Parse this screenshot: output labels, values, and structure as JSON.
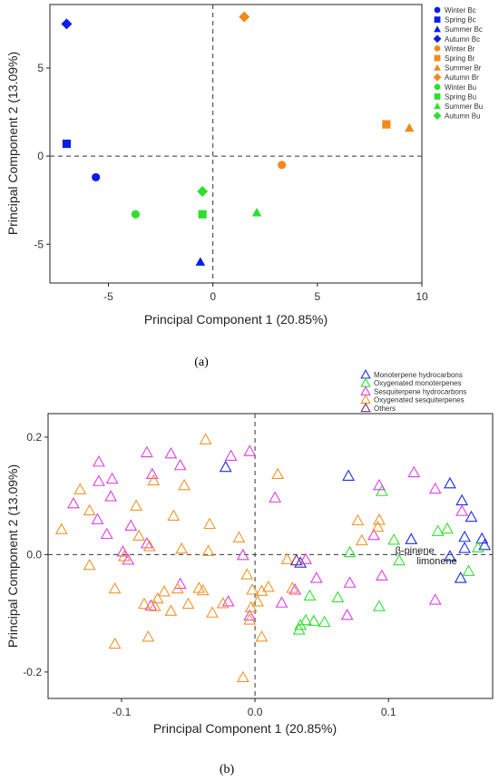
{
  "colors": {
    "Bc": "#0a1ee8",
    "Br": "#f2891e",
    "Bu": "#2ee02e",
    "monoterpene": "#1a2ee8",
    "oxy_mono": "#33e033",
    "sesqui": "#e23de6",
    "oxy_sesqui": "#f0962a",
    "others": "#7a2a6e"
  },
  "chart_data": [
    {
      "type": "scatter",
      "panel_label": "(a)",
      "xlabel": "Principal Component 1 (20.85%)",
      "ylabel": "Principal Component 2 (13.09%)",
      "xlim": [
        -7.8,
        10.0
      ],
      "ylim": [
        -7.2,
        8.6
      ],
      "xticks": [
        -5,
        0,
        5,
        10
      ],
      "yticks": [
        -5,
        0,
        5
      ],
      "reference_lines": {
        "x": 0,
        "y": 0
      },
      "legend_position": "right, outside",
      "series": [
        {
          "name": "Winter Bc",
          "marker": "circle",
          "color_key": "Bc",
          "points": [
            [
              -5.6,
              -1.2
            ]
          ]
        },
        {
          "name": "Spring Bc",
          "marker": "square",
          "color_key": "Bc",
          "points": [
            [
              -7.0,
              0.7
            ]
          ]
        },
        {
          "name": "Summer Bc",
          "marker": "triangle",
          "color_key": "Bc",
          "points": [
            [
              -0.6,
              -6.0
            ]
          ]
        },
        {
          "name": "Autumn Bc",
          "marker": "diamond",
          "color_key": "Bc",
          "points": [
            [
              -7.0,
              7.5
            ]
          ]
        },
        {
          "name": "Winter Br",
          "marker": "circle",
          "color_key": "Br",
          "points": [
            [
              3.3,
              -0.5
            ]
          ]
        },
        {
          "name": "Spring Br",
          "marker": "square",
          "color_key": "Br",
          "points": [
            [
              8.3,
              1.8
            ]
          ]
        },
        {
          "name": "Summer Br",
          "marker": "triangle",
          "color_key": "Br",
          "points": [
            [
              9.4,
              1.6
            ]
          ]
        },
        {
          "name": "Autumn Br",
          "marker": "diamond",
          "color_key": "Br",
          "points": [
            [
              1.5,
              7.9
            ]
          ]
        },
        {
          "name": "Winter Bu",
          "marker": "circle",
          "color_key": "Bu",
          "points": [
            [
              -3.7,
              -3.3
            ]
          ]
        },
        {
          "name": "Spring Bu",
          "marker": "square",
          "color_key": "Bu",
          "points": [
            [
              -0.5,
              -3.3
            ]
          ]
        },
        {
          "name": "Summer Bu",
          "marker": "triangle",
          "color_key": "Bu",
          "points": [
            [
              2.1,
              -3.2
            ]
          ]
        },
        {
          "name": "Autumn Bu",
          "marker": "diamond",
          "color_key": "Bu",
          "points": [
            [
              -0.5,
              -2.0
            ]
          ]
        }
      ]
    },
    {
      "type": "scatter",
      "panel_label": "(b)",
      "xlabel": "Principal Component 1 (20.85%)",
      "ylabel": "Principal Component 2 (13.09%)",
      "xlim": [
        -0.155,
        0.178
      ],
      "ylim": [
        -0.245,
        0.24
      ],
      "xticks": [
        -0.1,
        0.0,
        0.1
      ],
      "xtick_labels": [
        "-0.1",
        "0.0",
        "0.1"
      ],
      "yticks": [
        -0.2,
        0.0,
        0.2
      ],
      "ytick_labels": [
        "-0.2",
        "0.0",
        "0.2"
      ],
      "reference_lines": {
        "x": 0,
        "y": 0
      },
      "legend_position": "top-right, outside",
      "marker": "open triangle",
      "annotations": [
        {
          "text": "β-pinene",
          "x": 0.105,
          "y": 0.0
        },
        {
          "text": "limonene",
          "x": 0.121,
          "y": -0.018
        }
      ],
      "series": [
        {
          "name": "Monoterpene hydrocarbons",
          "color_key": "monoterpene",
          "points": [
            [
              -0.022,
              0.149
            ],
            [
              0.034,
              -0.014
            ],
            [
              0.07,
              0.134
            ],
            [
              0.117,
              0.026
            ],
            [
              0.146,
              0.121
            ],
            [
              0.155,
              0.092
            ],
            [
              0.162,
              0.064
            ],
            [
              0.157,
              0.03
            ],
            [
              0.17,
              0.027
            ],
            [
              0.172,
              0.016
            ],
            [
              0.157,
              0.011
            ],
            [
              0.146,
              -0.003
            ],
            [
              0.154,
              -0.04
            ]
          ]
        },
        {
          "name": "Oxygenated monoterpenes",
          "color_key": "oxy_mono",
          "points": [
            [
              0.095,
              0.108
            ],
            [
              0.137,
              0.04
            ],
            [
              0.144,
              0.044
            ],
            [
              0.167,
              0.012
            ],
            [
              0.104,
              0.025
            ],
            [
              0.108,
              -0.01
            ],
            [
              0.071,
              0.004
            ],
            [
              0.16,
              -0.028
            ],
            [
              0.062,
              -0.073
            ],
            [
              0.041,
              -0.07
            ],
            [
              0.034,
              -0.12
            ],
            [
              0.044,
              -0.113
            ],
            [
              0.038,
              -0.112
            ],
            [
              0.052,
              -0.115
            ],
            [
              0.093,
              -0.088
            ],
            [
              0.033,
              -0.128
            ]
          ]
        },
        {
          "name": "Sesquiterpene hydrocarbons",
          "color_key": "sesqui",
          "points": [
            [
              -0.081,
              0.174
            ],
            [
              -0.063,
              0.172
            ],
            [
              -0.018,
              0.168
            ],
            [
              -0.004,
              0.176
            ],
            [
              -0.117,
              0.158
            ],
            [
              -0.107,
              0.129
            ],
            [
              -0.117,
              0.125
            ],
            [
              -0.056,
              0.152
            ],
            [
              -0.077,
              0.137
            ],
            [
              0.119,
              0.14
            ],
            [
              0.093,
              0.118
            ],
            [
              0.135,
              0.112
            ],
            [
              0.155,
              0.074
            ],
            [
              0.015,
              0.097
            ],
            [
              -0.136,
              0.087
            ],
            [
              -0.108,
              0.099
            ],
            [
              -0.118,
              0.06
            ],
            [
              -0.093,
              0.049
            ],
            [
              -0.111,
              0.035
            ],
            [
              -0.081,
              0.019
            ],
            [
              -0.099,
              0.005
            ],
            [
              -0.095,
              -0.009
            ],
            [
              -0.009,
              -0.001
            ],
            [
              0.038,
              -0.008
            ],
            [
              0.089,
              0.033
            ],
            [
              0.046,
              -0.04
            ],
            [
              0.095,
              -0.036
            ],
            [
              -0.056,
              -0.05
            ],
            [
              -0.078,
              -0.087
            ],
            [
              -0.02,
              -0.08
            ],
            [
              0.03,
              -0.06
            ],
            [
              0.02,
              -0.082
            ],
            [
              0.071,
              -0.048
            ],
            [
              -0.004,
              -0.104
            ],
            [
              0.069,
              -0.103
            ],
            [
              0.135,
              -0.077
            ]
          ]
        },
        {
          "name": "Oxygenated sesquiterpenes",
          "color_key": "oxy_sesqui",
          "points": [
            [
              -0.037,
              0.196
            ],
            [
              0.017,
              0.137
            ],
            [
              -0.131,
              0.111
            ],
            [
              -0.053,
              0.118
            ],
            [
              -0.076,
              0.126
            ],
            [
              -0.089,
              0.083
            ],
            [
              -0.061,
              0.066
            ],
            [
              -0.124,
              0.075
            ],
            [
              -0.145,
              0.043
            ],
            [
              -0.087,
              0.032
            ],
            [
              -0.034,
              0.052
            ],
            [
              -0.012,
              0.029
            ],
            [
              -0.079,
              0.014
            ],
            [
              -0.055,
              0.01
            ],
            [
              -0.035,
              0.006
            ],
            [
              0.077,
              0.058
            ],
            [
              0.093,
              0.059
            ],
            [
              0.092,
              0.047
            ],
            [
              0.08,
              0.024
            ],
            [
              -0.124,
              -0.018
            ],
            [
              -0.098,
              -0.003
            ],
            [
              -0.105,
              -0.058
            ],
            [
              -0.068,
              -0.063
            ],
            [
              -0.058,
              -0.058
            ],
            [
              -0.039,
              -0.061
            ],
            [
              -0.042,
              -0.057
            ],
            [
              0.024,
              -0.008
            ],
            [
              0.028,
              -0.057
            ],
            [
              -0.006,
              -0.034
            ],
            [
              -0.002,
              -0.06
            ],
            [
              0.005,
              -0.062
            ],
            [
              -0.073,
              -0.075
            ],
            [
              -0.083,
              -0.084
            ],
            [
              -0.075,
              -0.088
            ],
            [
              -0.063,
              -0.096
            ],
            [
              -0.05,
              -0.084
            ],
            [
              -0.024,
              -0.083
            ],
            [
              -0.032,
              -0.099
            ],
            [
              -0.003,
              -0.09
            ],
            [
              0.002,
              -0.08
            ],
            [
              0.01,
              -0.055
            ],
            [
              -0.004,
              -0.111
            ],
            [
              0.005,
              -0.14
            ],
            [
              -0.08,
              -0.14
            ],
            [
              -0.105,
              -0.152
            ],
            [
              -0.009,
              -0.209
            ]
          ]
        },
        {
          "name": "Others",
          "color_key": "others",
          "points": [
            [
              0.031,
              -0.01
            ]
          ]
        }
      ]
    }
  ]
}
